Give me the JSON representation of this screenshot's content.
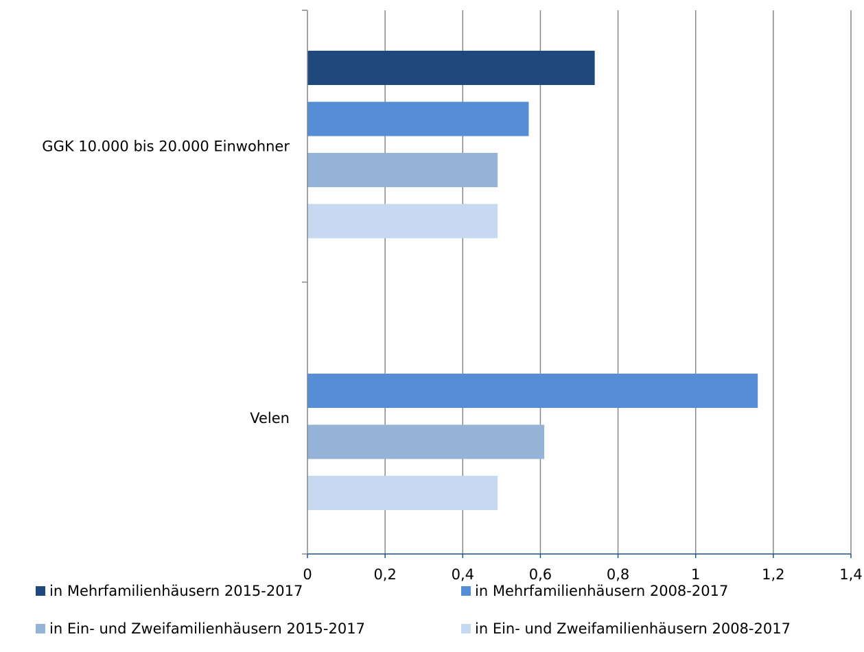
{
  "chart_data": {
    "type": "bar",
    "orientation": "horizontal",
    "categories": [
      "GGK 10.000 bis 20.000 Einwohner",
      "Velen"
    ],
    "series": [
      {
        "name": "in Mehrfamilienhäusern 2015-2017",
        "color": "#1f497d",
        "values": [
          0.74,
          0
        ]
      },
      {
        "name": "in Mehrfamilienhäusern 2008-2017",
        "color": "#558ed5",
        "values": [
          0.57,
          1.16
        ]
      },
      {
        "name": "in Ein- und Zweifamilienhäusern 2015-2017",
        "color": "#95b3d7",
        "values": [
          0.49,
          0.61
        ]
      },
      {
        "name": "in Ein- und Zweifamilienhäusern 2008-2017",
        "color": "#c6d9f0",
        "values": [
          0.49,
          0.49
        ]
      }
    ],
    "x_ticks": [
      "0",
      "0,2",
      "0,4",
      "0,6",
      "0,8",
      "1",
      "1,2",
      "1,4"
    ],
    "xlim": [
      0,
      1.4
    ],
    "title": "",
    "xlabel": "",
    "ylabel": "",
    "grid": "vertical",
    "legend_position": "bottom"
  }
}
